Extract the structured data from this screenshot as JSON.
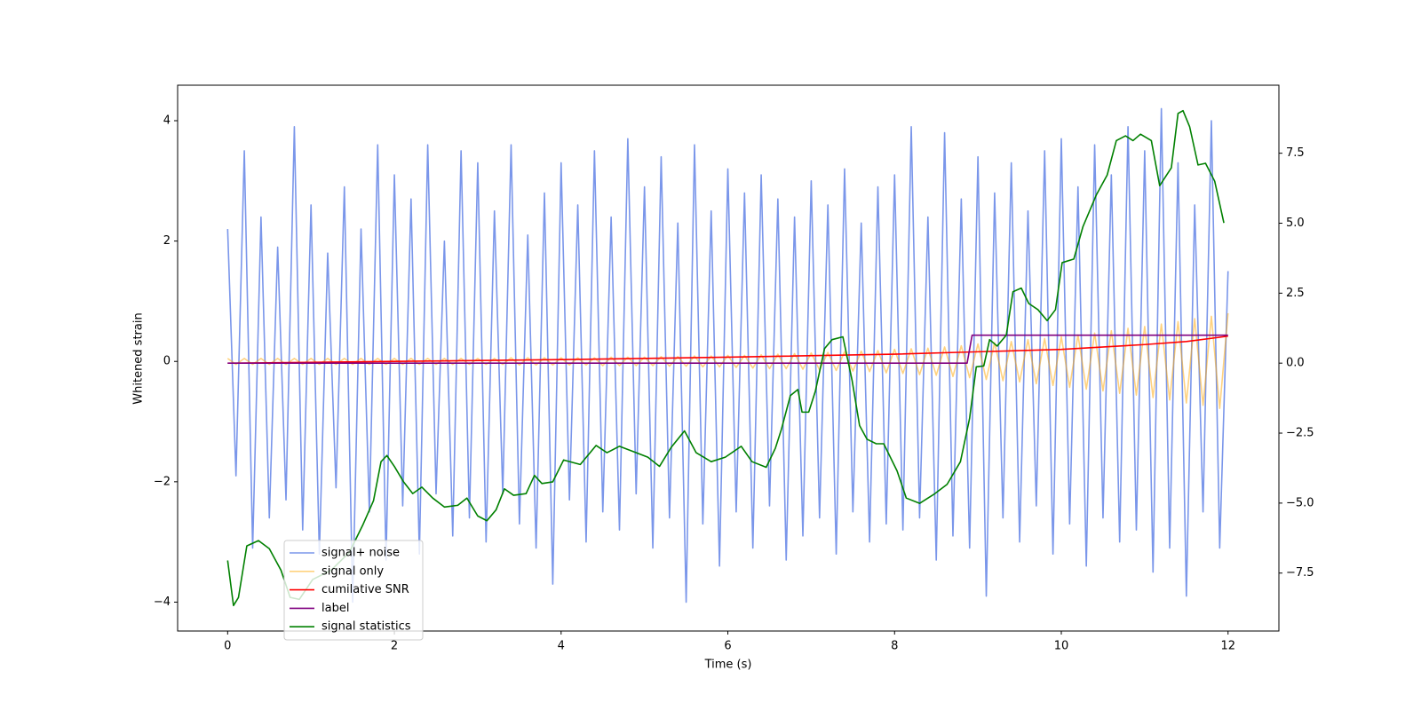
{
  "chart_data": {
    "type": "line",
    "xlabel": "Time (s)",
    "ylabel": "Whitened strain",
    "xlim": [
      -0.6,
      12.61
    ],
    "ylim": [
      -4.48,
      4.59
    ],
    "y2lim": [
      -9.57,
      9.93
    ],
    "xticks": [
      0,
      2,
      4,
      6,
      8,
      10,
      12
    ],
    "yticks": [
      {
        "value": -4,
        "label": "−4"
      },
      {
        "value": -2,
        "label": "−2"
      },
      0,
      2,
      4
    ],
    "y2ticks": [
      {
        "value": -7.5,
        "label": "−7.5"
      },
      {
        "value": -5,
        "label": "−5.0"
      },
      {
        "value": -2.5,
        "label": "−2.5"
      },
      {
        "value": 0,
        "label": "0.0"
      },
      2.5,
      {
        "value": 5,
        "label": "5.0"
      },
      7.5
    ],
    "legend": "lower left",
    "x": [
      0,
      0.1,
      0.2,
      0.3,
      0.4,
      0.5,
      0.6,
      0.7,
      0.8,
      0.9,
      1,
      1.1,
      1.2,
      1.3,
      1.4,
      1.5,
      1.6,
      1.7,
      1.8,
      1.9,
      2,
      2.1,
      2.2,
      2.3,
      2.4,
      2.5,
      2.6,
      2.7,
      2.8,
      2.9,
      3,
      3.1,
      3.2,
      3.3,
      3.4,
      3.5,
      3.6,
      3.7,
      3.8,
      3.9,
      4,
      4.1,
      4.2,
      4.3,
      4.4,
      4.5,
      4.6,
      4.7,
      4.8,
      4.9,
      5,
      5.1,
      5.2,
      5.3,
      5.4,
      5.5,
      5.6,
      5.7,
      5.8,
      5.9,
      6,
      6.1,
      6.2,
      6.3,
      6.4,
      6.5,
      6.6,
      6.7,
      6.8,
      6.9,
      7,
      7.1,
      7.2,
      7.3,
      7.4,
      7.5,
      7.6,
      7.7,
      7.8,
      7.9,
      8,
      8.1,
      8.2,
      8.3,
      8.4,
      8.5,
      8.6,
      8.7,
      8.8,
      8.9,
      9,
      9.1,
      9.2,
      9.3,
      9.4,
      9.5,
      9.6,
      9.7,
      9.8,
      9.9,
      10,
      10.1,
      10.2,
      10.3,
      10.4,
      10.5,
      10.6,
      10.7,
      10.8,
      10.9,
      11,
      11.1,
      11.2,
      11.3,
      11.4,
      11.5,
      11.6,
      11.7,
      11.8,
      11.9,
      12
    ],
    "series": [
      {
        "name": "signal+ noise",
        "color": "royalblue",
        "alpha": 0.7,
        "values": [
          2.2,
          -1.9,
          3.5,
          -3.1,
          2.4,
          -2.6,
          1.9,
          -2.3,
          3.9,
          -2.8,
          2.6,
          -3.2,
          1.8,
          -2.1,
          2.9,
          -4.0,
          2.2,
          -2.5,
          3.6,
          -3.3,
          3.1,
          -2.4,
          2.7,
          -3.2,
          3.6,
          -2.2,
          2.0,
          -2.9,
          3.5,
          -2.6,
          3.3,
          -3.0,
          2.5,
          -2.2,
          3.6,
          -2.7,
          2.1,
          -3.1,
          2.8,
          -3.7,
          3.3,
          -2.3,
          2.6,
          -3.0,
          3.5,
          -2.5,
          2.4,
          -2.8,
          3.7,
          -2.2,
          2.9,
          -3.1,
          3.4,
          -2.6,
          2.3,
          -4.0,
          3.6,
          -2.7,
          2.5,
          -3.4,
          3.2,
          -2.5,
          2.8,
          -3.1,
          3.1,
          -2.4,
          2.7,
          -3.3,
          2.4,
          -2.9,
          3.0,
          -2.6,
          2.6,
          -3.2,
          3.2,
          -2.5,
          2.3,
          -3.0,
          2.9,
          -2.7,
          3.1,
          -2.8,
          3.9,
          -2.6,
          2.4,
          -3.3,
          3.8,
          -2.9,
          2.7,
          -3.1,
          3.4,
          -3.9,
          2.8,
          -2.6,
          3.3,
          -3.0,
          2.5,
          -2.4,
          3.5,
          -3.2,
          3.7,
          -2.7,
          2.9,
          -3.4,
          3.6,
          -2.6,
          3.1,
          -3.0,
          3.9,
          -2.8,
          3.5,
          -3.5,
          4.2,
          -3.1,
          3.3,
          -3.9,
          2.6,
          -2.5,
          4.0,
          -3.1,
          1.5
        ]
      },
      {
        "name": "signal only",
        "color": "orange",
        "alpha": 0.5,
        "values": [
          0.05,
          -0.05,
          0.05,
          -0.05,
          0.05,
          -0.05,
          0.05,
          -0.05,
          0.05,
          -0.05,
          0.05,
          -0.05,
          0.05,
          -0.05,
          0.05,
          -0.05,
          0.05,
          -0.05,
          0.05,
          -0.05,
          0.05,
          -0.05,
          0.05,
          -0.05,
          0.05,
          -0.05,
          0.05,
          -0.05,
          0.05,
          -0.05,
          0.05,
          -0.05,
          0.05,
          -0.05,
          0.06,
          -0.06,
          0.06,
          -0.06,
          0.06,
          -0.06,
          0.06,
          -0.06,
          0.06,
          -0.06,
          0.06,
          -0.07,
          0.07,
          -0.07,
          0.07,
          -0.07,
          0.07,
          -0.07,
          0.08,
          -0.08,
          0.08,
          -0.08,
          0.09,
          -0.09,
          0.09,
          -0.09,
          0.1,
          -0.1,
          0.1,
          -0.11,
          0.11,
          -0.12,
          0.12,
          -0.12,
          0.13,
          -0.13,
          0.14,
          -0.14,
          0.15,
          -0.15,
          0.16,
          -0.16,
          0.17,
          -0.17,
          0.18,
          -0.19,
          0.2,
          -0.2,
          0.21,
          -0.22,
          0.22,
          -0.23,
          0.24,
          -0.25,
          0.26,
          -0.27,
          0.29,
          -0.3,
          0.31,
          -0.32,
          0.33,
          -0.34,
          0.36,
          -0.37,
          0.38,
          -0.4,
          0.41,
          -0.43,
          0.44,
          -0.46,
          0.47,
          -0.49,
          0.51,
          -0.53,
          0.55,
          -0.56,
          0.58,
          -0.6,
          0.62,
          -0.64,
          0.66,
          -0.69,
          0.71,
          -0.73,
          0.75,
          -0.78,
          0.8
        ]
      },
      {
        "name": "cumilative SNR",
        "color": "red",
        "x": [
          0,
          2,
          4,
          6,
          8,
          9,
          10,
          11,
          11.5,
          12
        ],
        "values": [
          -0.03,
          0.0,
          0.03,
          0.07,
          0.12,
          0.16,
          0.2,
          0.28,
          0.33,
          0.42
        ]
      },
      {
        "name": "label",
        "color": "purple",
        "axis": "y2",
        "x": [
          0,
          8.87,
          8.93,
          12
        ],
        "values": [
          0,
          0,
          1,
          1
        ]
      },
      {
        "name": "signal statistics",
        "color": "green",
        "axis": "y2",
        "x": [
          0,
          0.07,
          0.13,
          0.23,
          0.37,
          0.5,
          0.64,
          0.75,
          0.86,
          1.02,
          1.24,
          1.46,
          1.62,
          1.75,
          1.84,
          1.91,
          2.0,
          2.11,
          2.22,
          2.33,
          2.46,
          2.6,
          2.76,
          2.87,
          3.0,
          3.11,
          3.22,
          3.32,
          3.43,
          3.58,
          3.68,
          3.77,
          3.9,
          4.03,
          4.23,
          4.42,
          4.55,
          4.7,
          4.85,
          5.04,
          5.18,
          5.32,
          5.48,
          5.62,
          5.8,
          5.97,
          6.16,
          6.29,
          6.46,
          6.57,
          6.64,
          6.75,
          6.84,
          6.89,
          6.97,
          7.05,
          7.16,
          7.25,
          7.38,
          7.49,
          7.58,
          7.67,
          7.78,
          7.87,
          8.03,
          8.14,
          8.3,
          8.47,
          8.63,
          8.79,
          8.9,
          8.98,
          9.07,
          9.14,
          9.23,
          9.34,
          9.42,
          9.52,
          9.61,
          9.72,
          9.83,
          9.93,
          10.01,
          10.15,
          10.26,
          10.42,
          10.55,
          10.66,
          10.77,
          10.86,
          10.95,
          11.08,
          11.18,
          11.32,
          11.4,
          11.46,
          11.54,
          11.64,
          11.73,
          11.84,
          11.95
        ],
        "values": [
          -7.05,
          -8.66,
          -8.37,
          -6.53,
          -6.34,
          -6.63,
          -7.4,
          -8.37,
          -8.44,
          -7.73,
          -7.4,
          -6.76,
          -5.79,
          -4.91,
          -3.52,
          -3.3,
          -3.69,
          -4.24,
          -4.66,
          -4.43,
          -4.82,
          -5.14,
          -5.08,
          -4.82,
          -5.46,
          -5.63,
          -5.24,
          -4.49,
          -4.72,
          -4.66,
          -4.01,
          -4.3,
          -4.24,
          -3.46,
          -3.62,
          -2.94,
          -3.2,
          -2.97,
          -3.14,
          -3.36,
          -3.69,
          -3.01,
          -2.42,
          -3.2,
          -3.52,
          -3.36,
          -2.97,
          -3.52,
          -3.72,
          -3.04,
          -2.39,
          -1.16,
          -0.94,
          -1.75,
          -1.75,
          -1.0,
          0.52,
          0.84,
          0.94,
          -0.61,
          -2.23,
          -2.72,
          -2.88,
          -2.88,
          -3.85,
          -4.82,
          -5.01,
          -4.69,
          -4.33,
          -3.52,
          -1.97,
          -0.13,
          -0.1,
          0.84,
          0.61,
          1.0,
          2.55,
          2.68,
          2.13,
          1.91,
          1.52,
          1.91,
          3.59,
          3.72,
          4.88,
          6.01,
          6.72,
          7.95,
          8.12,
          7.95,
          8.18,
          7.95,
          6.34,
          6.98,
          8.92,
          9.02,
          8.44,
          7.08,
          7.14,
          6.5,
          5.01
        ]
      }
    ]
  }
}
